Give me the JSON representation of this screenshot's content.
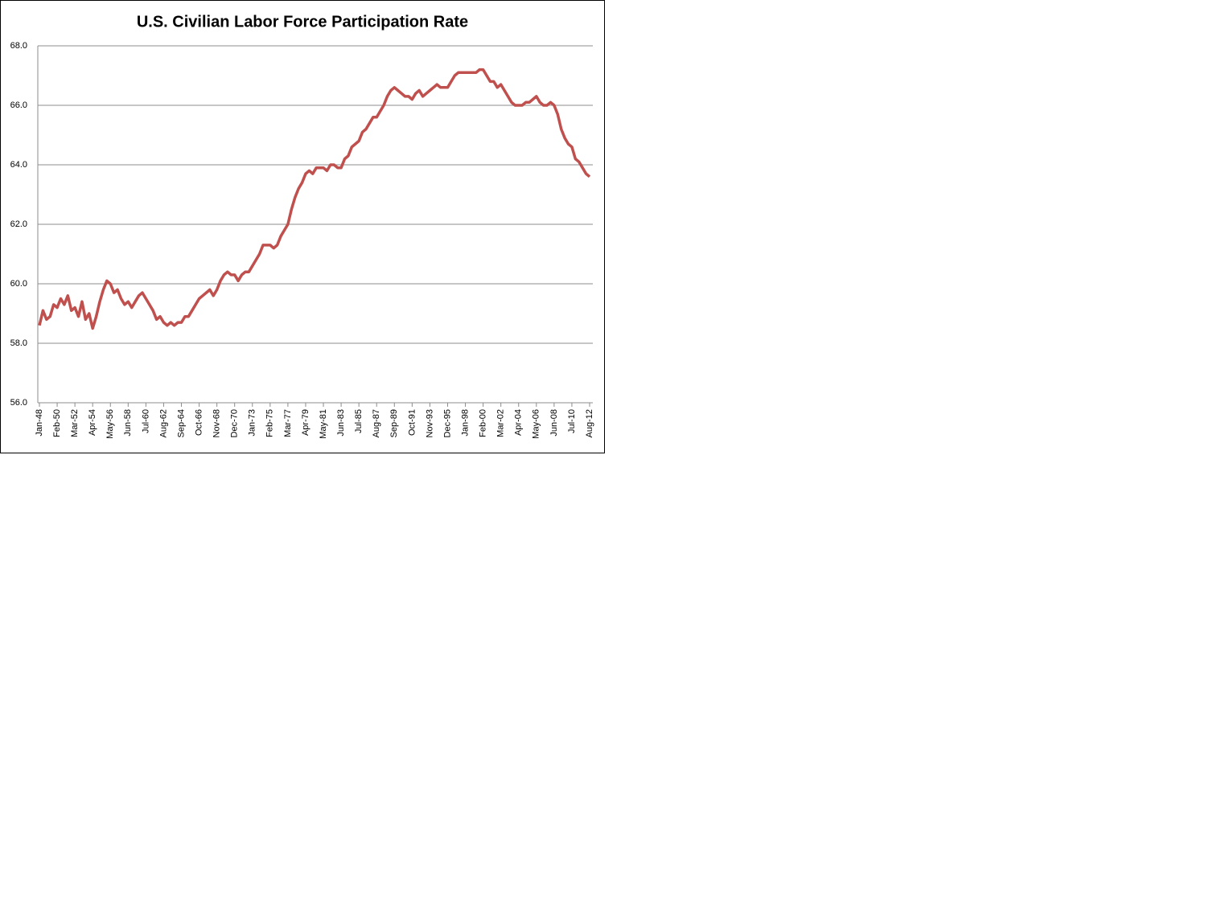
{
  "chart_data": {
    "type": "line",
    "title": "U.S. Civilian Labor Force Participation Rate",
    "categories": [
      "Jan-48",
      null,
      null,
      null,
      null,
      "Feb-50",
      null,
      null,
      null,
      null,
      "Mar-52",
      null,
      null,
      null,
      null,
      "Apr-54",
      null,
      null,
      null,
      null,
      "May-56",
      null,
      null,
      null,
      null,
      "Jun-58",
      null,
      null,
      null,
      null,
      "Jul-60",
      null,
      null,
      null,
      null,
      "Aug-62",
      null,
      null,
      null,
      null,
      "Sep-64",
      null,
      null,
      null,
      null,
      "Oct-66",
      null,
      null,
      null,
      null,
      "Nov-68",
      null,
      null,
      null,
      null,
      "Dec-70",
      null,
      null,
      null,
      null,
      "Jan-73",
      null,
      null,
      null,
      null,
      "Feb-75",
      null,
      null,
      null,
      null,
      "Mar-77",
      null,
      null,
      null,
      null,
      "Apr-79",
      null,
      null,
      null,
      null,
      "May-81",
      null,
      null,
      null,
      null,
      "Jun-83",
      null,
      null,
      null,
      null,
      "Jul-85",
      null,
      null,
      null,
      null,
      "Aug-87",
      null,
      null,
      null,
      null,
      "Sep-89",
      null,
      null,
      null,
      null,
      "Oct-91",
      null,
      null,
      null,
      null,
      "Nov-93",
      null,
      null,
      null,
      null,
      "Dec-95",
      null,
      null,
      null,
      null,
      "Jan-98",
      null,
      null,
      null,
      null,
      "Feb-00",
      null,
      null,
      null,
      null,
      "Mar-02",
      null,
      null,
      null,
      null,
      "Apr-04",
      null,
      null,
      null,
      null,
      "May-06",
      null,
      null,
      null,
      null,
      "Jun-08",
      null,
      null,
      null,
      null,
      "Jul-10",
      null,
      null,
      null,
      null,
      "Aug-12"
    ],
    "values": [
      58.6,
      59.1,
      58.8,
      58.9,
      59.3,
      59.2,
      59.5,
      59.3,
      59.6,
      59.1,
      59.2,
      58.9,
      59.4,
      58.8,
      59.0,
      58.5,
      58.9,
      59.4,
      59.8,
      60.1,
      60.0,
      59.7,
      59.8,
      59.5,
      59.3,
      59.4,
      59.2,
      59.4,
      59.6,
      59.7,
      59.5,
      59.3,
      59.1,
      58.8,
      58.9,
      58.7,
      58.6,
      58.7,
      58.6,
      58.7,
      58.7,
      58.9,
      58.9,
      59.1,
      59.3,
      59.5,
      59.6,
      59.7,
      59.8,
      59.6,
      59.8,
      60.1,
      60.3,
      60.4,
      60.3,
      60.3,
      60.1,
      60.3,
      60.4,
      60.4,
      60.6,
      60.8,
      61.0,
      61.3,
      61.3,
      61.3,
      61.2,
      61.3,
      61.6,
      61.8,
      62.0,
      62.5,
      62.9,
      63.2,
      63.4,
      63.7,
      63.8,
      63.7,
      63.9,
      63.9,
      63.9,
      63.8,
      64.0,
      64.0,
      63.9,
      63.9,
      64.2,
      64.3,
      64.6,
      64.7,
      64.8,
      65.1,
      65.2,
      65.4,
      65.6,
      65.6,
      65.8,
      66.0,
      66.3,
      66.5,
      66.6,
      66.5,
      66.4,
      66.3,
      66.3,
      66.2,
      66.4,
      66.5,
      66.3,
      66.4,
      66.5,
      66.6,
      66.7,
      66.6,
      66.6,
      66.6,
      66.8,
      67.0,
      67.1,
      67.1,
      67.1,
      67.1,
      67.1,
      67.1,
      67.2,
      67.2,
      67.0,
      66.8,
      66.8,
      66.6,
      66.7,
      66.5,
      66.3,
      66.1,
      66.0,
      66.0,
      66.0,
      66.1,
      66.1,
      66.2,
      66.3,
      66.1,
      66.0,
      66.0,
      66.1,
      66.0,
      65.7,
      65.2,
      64.9,
      64.7,
      64.6,
      64.2,
      64.1,
      63.9,
      63.7,
      63.6
    ],
    "color": "#c0504d",
    "ylim": [
      56,
      68
    ],
    "yticks": [
      {
        "value": 56,
        "label": "56.0"
      },
      {
        "value": 58,
        "label": "58.0"
      },
      {
        "value": 60,
        "label": "60.0"
      },
      {
        "value": 62,
        "label": "62.0"
      },
      {
        "value": 64,
        "label": "64.0"
      },
      {
        "value": 66,
        "label": "66.0"
      },
      {
        "value": 68,
        "label": "68.0"
      }
    ],
    "grid": true
  }
}
